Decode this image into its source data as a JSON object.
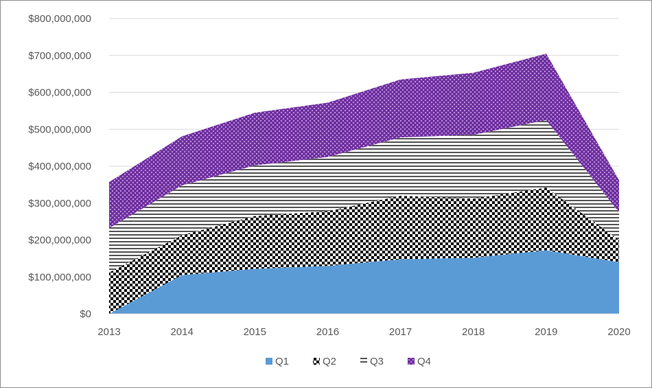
{
  "chart_data": {
    "type": "area",
    "stacked": true,
    "x": [
      "2013",
      "2014",
      "2015",
      "2016",
      "2017",
      "2018",
      "2019",
      "2020"
    ],
    "series": [
      {
        "name": "Q1",
        "values": [
          0,
          105000000,
          122000000,
          130000000,
          148000000,
          152000000,
          172000000,
          140000000
        ],
        "color": "#5b9bd5",
        "fill": "solid"
      },
      {
        "name": "Q2",
        "values": [
          112000000,
          108000000,
          143000000,
          148000000,
          172000000,
          160000000,
          170000000,
          60000000
        ],
        "color": "#000000",
        "fill": "checker"
      },
      {
        "name": "Q3",
        "values": [
          120000000,
          135000000,
          137000000,
          147000000,
          158000000,
          173000000,
          183000000,
          75000000
        ],
        "color": "#555555",
        "fill": "horizontal-lines"
      },
      {
        "name": "Q4",
        "values": [
          125000000,
          133000000,
          143000000,
          147000000,
          157000000,
          168000000,
          180000000,
          87000000
        ],
        "color": "#7030a0",
        "fill": "dots"
      }
    ],
    "y_ticks": [
      "$0",
      "$100,000,000",
      "$200,000,000",
      "$300,000,000",
      "$400,000,000",
      "$500,000,000",
      "$600,000,000",
      "$700,000,000",
      "$800,000,000"
    ],
    "ylim": [
      0,
      800000000
    ],
    "grid": true,
    "legend_position": "bottom",
    "title": "",
    "xlabel": "",
    "ylabel": ""
  }
}
